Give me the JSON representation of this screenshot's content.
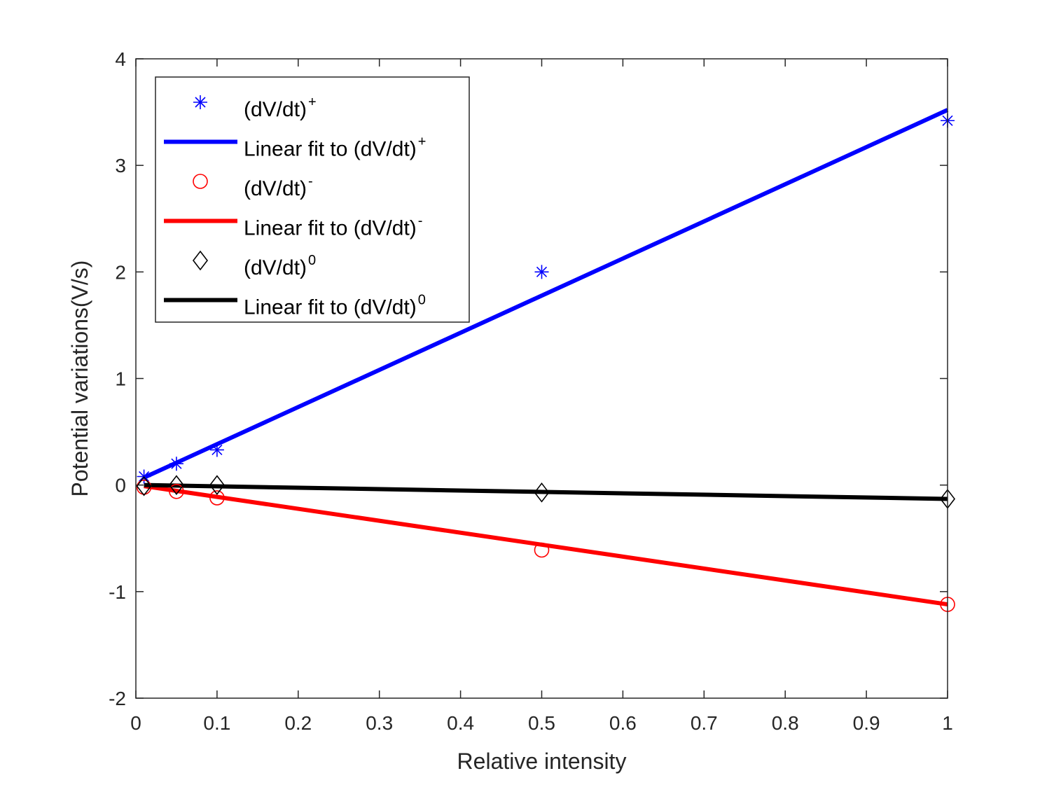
{
  "chart_data": {
    "type": "scatter",
    "title": "",
    "xlabel": "Relative intensity",
    "ylabel": "Potential variations(V/s)",
    "xlim": [
      0,
      1
    ],
    "ylim": [
      -2,
      4
    ],
    "xticks": [
      0,
      0.1,
      0.2,
      0.3,
      0.4,
      0.5,
      0.6,
      0.7,
      0.8,
      0.9,
      1
    ],
    "yticks": [
      -2,
      -1,
      0,
      1,
      2,
      3,
      4
    ],
    "xtick_labels": [
      "0",
      "0.1",
      "0.2",
      "0.3",
      "0.4",
      "0.5",
      "0.6",
      "0.7",
      "0.8",
      "0.9",
      "1"
    ],
    "ytick_labels": [
      "-2",
      "-1",
      "0",
      "1",
      "2",
      "3",
      "4"
    ],
    "grid": false,
    "legend_position": "top-left",
    "series": [
      {
        "name": "(dV/dt)",
        "sup": "+",
        "kind": "points",
        "marker": "asterisk",
        "color": "#0000ff",
        "x": [
          0.01,
          0.05,
          0.1,
          0.5,
          1
        ],
        "y": [
          0.08,
          0.2,
          0.33,
          2.0,
          3.42
        ]
      },
      {
        "name": "Linear fit to (dV/dt)",
        "sup": "+",
        "kind": "line",
        "color": "#0000ff",
        "x": [
          0.01,
          1
        ],
        "y": [
          0.07,
          3.52
        ]
      },
      {
        "name": "(dV/dt)",
        "sup": "-",
        "kind": "points",
        "marker": "circle",
        "color": "#ff0000",
        "x": [
          0.01,
          0.05,
          0.1,
          0.5,
          1
        ],
        "y": [
          -0.02,
          -0.06,
          -0.12,
          -0.61,
          -1.12
        ]
      },
      {
        "name": "Linear fit to (dV/dt)",
        "sup": "-",
        "kind": "line",
        "color": "#ff0000",
        "x": [
          0.01,
          1
        ],
        "y": [
          -0.01,
          -1.12
        ]
      },
      {
        "name": "(dV/dt)",
        "sup": "0",
        "kind": "points",
        "marker": "diamond",
        "color": "#000000",
        "x": [
          0.01,
          0.05,
          0.1,
          0.5,
          1
        ],
        "y": [
          -0.01,
          0.0,
          0.0,
          -0.07,
          -0.13
        ]
      },
      {
        "name": "Linear fit to (dV/dt)",
        "sup": "0",
        "kind": "line",
        "color": "#000000",
        "x": [
          0.01,
          1
        ],
        "y": [
          0.0,
          -0.13
        ]
      }
    ]
  }
}
